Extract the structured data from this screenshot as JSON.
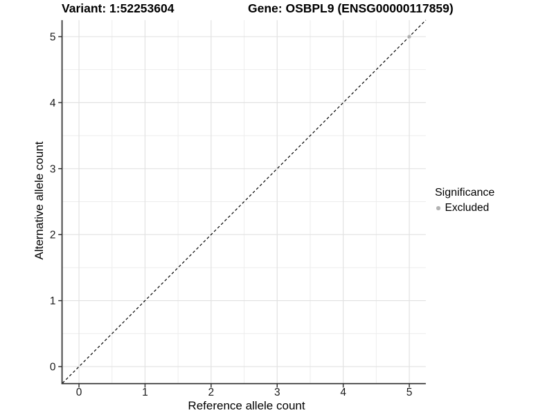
{
  "chart_data": {
    "type": "scatter",
    "title_left": "Variant: 1:52253604",
    "title_right": "Gene: OSBPL9 (ENSG00000117859)",
    "xlabel": "Reference allele count",
    "ylabel": "Alternative allele count",
    "xlim": [
      -0.25,
      5.25
    ],
    "ylim": [
      -0.25,
      5.25
    ],
    "xticks": [
      0,
      1,
      2,
      3,
      4,
      5
    ],
    "yticks": [
      0,
      1,
      2,
      3,
      4,
      5
    ],
    "minor_xticks": [
      0.5,
      1.5,
      2.5,
      3.5,
      4.5
    ],
    "minor_yticks": [
      0.5,
      1.5,
      2.5,
      3.5,
      4.5
    ],
    "grid": {
      "visible": true,
      "major_color": "#e2e2e2",
      "minor_color": "#ededed"
    },
    "panel_background": "#ffffff",
    "axis_line_color": "#333333",
    "tick_label_color": "#1a1a1a",
    "reference_line": {
      "slope": 1,
      "intercept": 0,
      "style": "dashed",
      "color": "#000000"
    },
    "series": [
      {
        "name": "Excluded",
        "marker": "circle",
        "color": "#b3b3b3",
        "points": [
          [
            5,
            5
          ]
        ]
      }
    ],
    "legend": {
      "title": "Significance",
      "position": "right",
      "items": [
        {
          "label": "Excluded",
          "color": "#b3b3b3",
          "marker": "circle"
        }
      ]
    }
  }
}
